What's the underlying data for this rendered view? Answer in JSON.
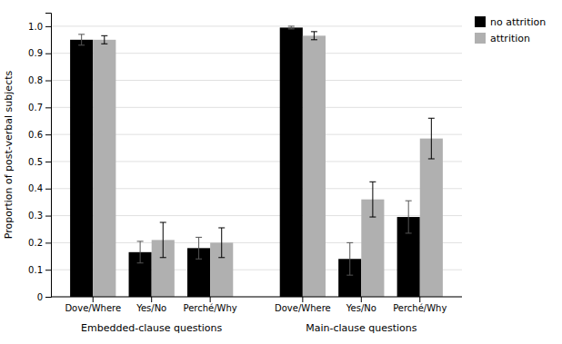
{
  "chart_data": {
    "type": "bar",
    "ylabel": "Proportion of post-verbal subjects",
    "categories": [
      "Dove/Where",
      "Yes/No",
      "Perché/Why",
      "Dove/Where",
      "Yes/No",
      "Perché/Why"
    ],
    "annotations": [
      "Embedded-clause questions",
      "Main-clause questions"
    ],
    "series": [
      {
        "name": "no attrition",
        "color": "#000000",
        "values": [
          0.95,
          0.165,
          0.18,
          0.995,
          0.14,
          0.295
        ],
        "errors": [
          0.02,
          0.04,
          0.04,
          0.005,
          0.06,
          0.06
        ]
      },
      {
        "name": "attrition",
        "color": "#b0b0b0",
        "values": [
          0.95,
          0.21,
          0.2,
          0.965,
          0.36,
          0.585
        ],
        "errors": [
          0.015,
          0.065,
          0.055,
          0.015,
          0.065,
          0.075
        ]
      }
    ],
    "ylim": [
      0,
      1.05
    ],
    "yticks": [
      0,
      0.1,
      0.2,
      0.3,
      0.4,
      0.5,
      0.6,
      0.7,
      0.8,
      0.9,
      {
        "value": 1.0,
        "label": "1.0"
      }
    ],
    "grid": true,
    "legend": "right"
  }
}
